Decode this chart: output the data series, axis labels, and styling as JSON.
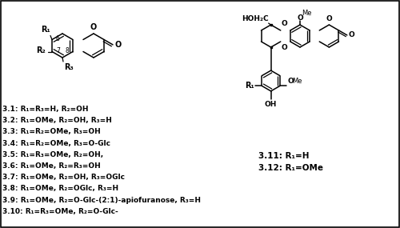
{
  "bg_color": "#ffffff",
  "text_color": "#000000",
  "labels": [
    [
      "3.1",
      "R₁=R₃=H, R₂=OH"
    ],
    [
      "3.2",
      "R₁=OMe, R₂=OH, R₃=H"
    ],
    [
      "3.3",
      "R₁=R₂=OMe, R₃=OH"
    ],
    [
      "3.4",
      "R₁=R₂=OMe, R₃=O-Glc"
    ],
    [
      "3.5",
      "R₁=R₃=OMe, R₂=OH,"
    ],
    [
      "3.6",
      "R₁=OMe, R₂=R₃=OH"
    ],
    [
      "3.7",
      "R₁=OMe, R₂=OH, R₃=OGlc"
    ],
    [
      "3.8",
      "R₁=OMe, R₂=OGlc, R₃=H"
    ],
    [
      "3.9",
      "R₁=OMe, R₂=O-Glc-(2:1)-apiofuranose, R₃=H"
    ],
    [
      "3.10",
      "R₁=R₃=OMe, R₂=O-Glc-"
    ]
  ],
  "labels_right": [
    [
      "3.11",
      "R₁=H"
    ],
    [
      "3.12",
      "R₁=OMe"
    ]
  ]
}
